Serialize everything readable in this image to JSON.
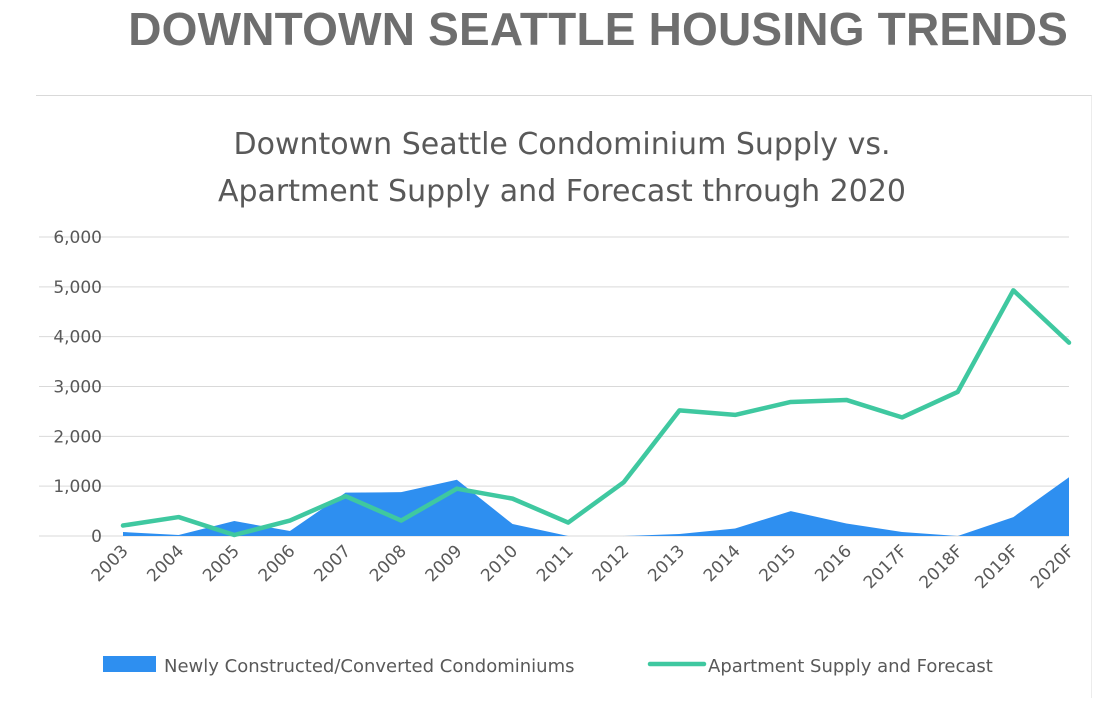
{
  "page": {
    "title": "DOWNTOWN SEATTLE HOUSING TRENDS"
  },
  "colors": {
    "page_title": "#6e6e6e",
    "condo_area": "#2e8ff0",
    "apartment_line": "#3fc8a0",
    "grid": "#d9d9d9",
    "text": "#595959"
  },
  "chart_data": {
    "type": "area",
    "title_lines": [
      "Downtown Seattle Condominium Supply vs.",
      "Apartment Supply and Forecast through 2020"
    ],
    "categories": [
      "2003",
      "2004",
      "2005",
      "2006",
      "2007",
      "2008",
      "2009",
      "2010",
      "2011",
      "2012",
      "2013",
      "2014",
      "2015",
      "2016",
      "2017F",
      "2018F",
      "2019F",
      "2020F"
    ],
    "y_ticks": [
      {
        "value": 0,
        "label": "0"
      },
      {
        "value": 1000,
        "label": "1,000"
      },
      {
        "value": 2000,
        "label": "2,000"
      },
      {
        "value": 3000,
        "label": "3,000"
      },
      {
        "value": 4000,
        "label": "4,000"
      },
      {
        "value": 5000,
        "label": "5,000"
      },
      {
        "value": 6000,
        "label": "6,000"
      }
    ],
    "ylim": [
      0,
      6000
    ],
    "grid": true,
    "legend_position": "bottom",
    "series": [
      {
        "name": "Newly Constructed/Converted Condominiums",
        "kind": "area",
        "values": [
          80,
          20,
          300,
          100,
          870,
          880,
          1130,
          240,
          0,
          0,
          40,
          150,
          500,
          250,
          80,
          0,
          380,
          1180
        ]
      },
      {
        "name": "Apartment Supply and Forecast",
        "kind": "line",
        "values": [
          210,
          380,
          20,
          310,
          800,
          310,
          950,
          750,
          270,
          1080,
          2520,
          2430,
          2690,
          2730,
          2380,
          2890,
          4930,
          3880
        ]
      }
    ]
  }
}
